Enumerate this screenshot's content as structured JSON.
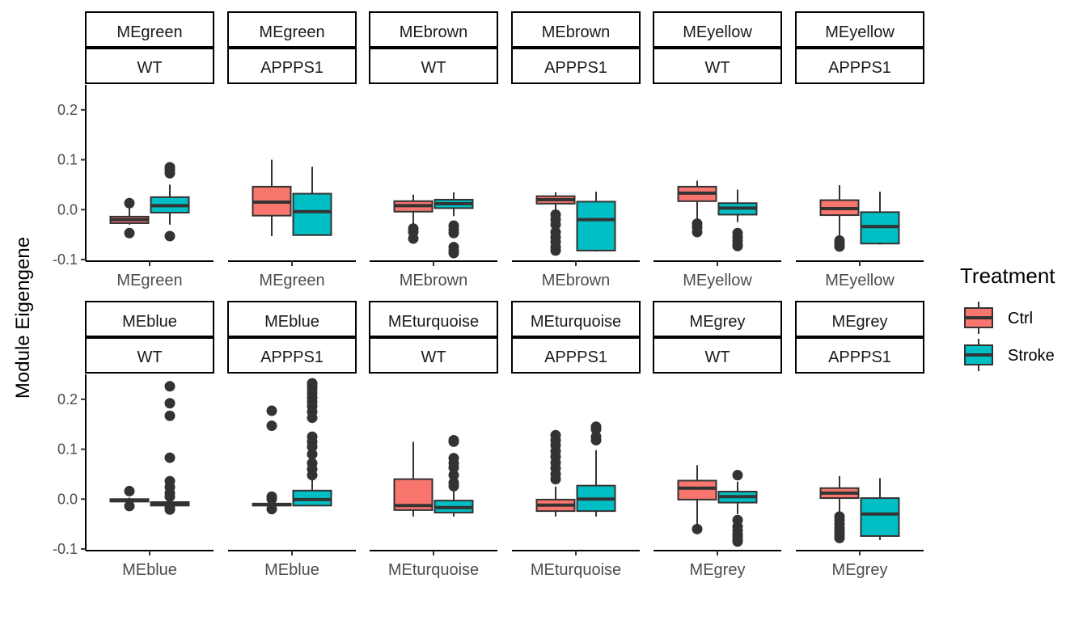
{
  "chart_data": {
    "type": "boxplot",
    "ylabel": "Module Eigengene",
    "ylim": [
      -0.1,
      0.25
    ],
    "yticks": [
      -0.1,
      0.0,
      0.1,
      0.2
    ],
    "ytick_labels": [
      "-0.1",
      "0.0",
      "0.1",
      "0.2"
    ],
    "grid": false,
    "legend": {
      "title": "Treatment",
      "position": "right",
      "entries": [
        {
          "label": "Ctrl",
          "color": "#F8766D"
        },
        {
          "label": "Stroke",
          "color": "#00BFC4"
        }
      ]
    },
    "panels": [
      {
        "module": "MEgreen",
        "genotype": "WT",
        "category": "MEgreen",
        "ctrl": {
          "q1": -0.027,
          "median": -0.02,
          "q3": -0.014,
          "lo": -0.03,
          "hi": 0.01,
          "outliers": [
            0.013,
            -0.047
          ]
        },
        "stroke": {
          "q1": -0.006,
          "median": 0.008,
          "q3": 0.025,
          "lo": -0.03,
          "hi": 0.05,
          "outliers": [
            0.085,
            0.08,
            0.073,
            -0.053
          ]
        }
      },
      {
        "module": "MEgreen",
        "genotype": "APPPS1",
        "category": "MEgreen",
        "ctrl": {
          "q1": -0.012,
          "median": 0.015,
          "q3": 0.046,
          "lo": -0.053,
          "hi": 0.1,
          "outliers": []
        },
        "stroke": {
          "q1": -0.051,
          "median": -0.004,
          "q3": 0.032,
          "lo": -0.051,
          "hi": 0.086,
          "outliers": []
        }
      },
      {
        "module": "MEbrown",
        "genotype": "WT",
        "category": "MEbrown",
        "ctrl": {
          "q1": -0.004,
          "median": 0.008,
          "q3": 0.017,
          "lo": -0.03,
          "hi": 0.03,
          "outliers": [
            -0.038,
            -0.045,
            -0.058
          ]
        },
        "stroke": {
          "q1": 0.003,
          "median": 0.012,
          "q3": 0.02,
          "lo": -0.013,
          "hi": 0.035,
          "outliers": [
            -0.032,
            -0.04,
            -0.047,
            -0.075,
            -0.082,
            -0.087
          ]
        }
      },
      {
        "module": "MEbrown",
        "genotype": "APPPS1",
        "category": "MEbrown",
        "ctrl": {
          "q1": 0.012,
          "median": 0.02,
          "q3": 0.027,
          "lo": 0.0,
          "hi": 0.035,
          "outliers": [
            -0.01,
            -0.02,
            -0.03,
            -0.045,
            -0.055,
            -0.065,
            -0.075,
            -0.082
          ]
        },
        "stroke": {
          "q1": -0.082,
          "median": -0.02,
          "q3": 0.016,
          "lo": -0.084,
          "hi": 0.036,
          "outliers": []
        }
      },
      {
        "module": "MEyellow",
        "genotype": "WT",
        "category": "MEyellow",
        "ctrl": {
          "q1": 0.017,
          "median": 0.033,
          "q3": 0.046,
          "lo": -0.02,
          "hi": 0.058,
          "outliers": [
            -0.028,
            -0.035,
            -0.045
          ]
        },
        "stroke": {
          "q1": -0.01,
          "median": 0.003,
          "q3": 0.013,
          "lo": -0.025,
          "hi": 0.04,
          "outliers": [
            -0.047,
            -0.055,
            -0.062,
            -0.07,
            -0.073
          ]
        }
      },
      {
        "module": "MEyellow",
        "genotype": "APPPS1",
        "category": "MEyellow",
        "ctrl": {
          "q1": -0.011,
          "median": 0.002,
          "q3": 0.019,
          "lo": -0.055,
          "hi": 0.049,
          "outliers": [
            -0.062,
            -0.068,
            -0.074
          ]
        },
        "stroke": {
          "q1": -0.068,
          "median": -0.034,
          "q3": -0.005,
          "lo": -0.07,
          "hi": 0.036,
          "outliers": []
        }
      },
      {
        "module": "MEblue",
        "genotype": "WT",
        "category": "MEblue",
        "ctrl": {
          "q1": -0.005,
          "median": -0.002,
          "q3": 0.0,
          "lo": -0.007,
          "hi": 0.003,
          "outliers": [
            0.016,
            -0.014
          ]
        },
        "stroke": {
          "q1": -0.013,
          "median": -0.009,
          "q3": -0.006,
          "lo": -0.017,
          "hi": -0.002,
          "outliers": [
            0.226,
            0.192,
            0.167,
            0.083,
            0.036,
            0.024,
            0.012,
            0.005,
            -0.018,
            -0.021
          ]
        }
      },
      {
        "module": "MEblue",
        "genotype": "APPPS1",
        "category": "MEblue",
        "ctrl": {
          "q1": -0.013,
          "median": -0.011,
          "q3": -0.009,
          "lo": -0.015,
          "hi": -0.005,
          "outliers": [
            0.177,
            0.147,
            0.005,
            0.0,
            -0.02
          ]
        },
        "stroke": {
          "q1": -0.013,
          "median": -0.001,
          "q3": 0.017,
          "lo": -0.013,
          "hi": 0.06,
          "outliers": [
            0.232,
            0.226,
            0.22,
            0.212,
            0.203,
            0.195,
            0.186,
            0.175,
            0.163,
            0.125,
            0.115,
            0.105,
            0.09,
            0.072,
            0.06,
            0.048
          ]
        }
      },
      {
        "module": "MEturquoise",
        "genotype": "WT",
        "category": "MEturquoise",
        "ctrl": {
          "q1": -0.022,
          "median": -0.013,
          "q3": 0.04,
          "lo": -0.035,
          "hi": 0.115,
          "outliers": []
        },
        "stroke": {
          "q1": -0.027,
          "median": -0.017,
          "q3": -0.003,
          "lo": -0.035,
          "hi": 0.018,
          "outliers": [
            0.118,
            0.115,
            0.082,
            0.072,
            0.063,
            0.048,
            0.033,
            0.026
          ]
        }
      },
      {
        "module": "MEturquoise",
        "genotype": "APPPS1",
        "category": "MEturquoise",
        "ctrl": {
          "q1": -0.024,
          "median": -0.012,
          "q3": -0.001,
          "lo": -0.035,
          "hi": 0.025,
          "outliers": [
            0.128,
            0.118,
            0.108,
            0.096,
            0.085,
            0.073,
            0.062,
            0.05,
            0.04
          ]
        },
        "stroke": {
          "q1": -0.024,
          "median": 0.0,
          "q3": 0.027,
          "lo": -0.035,
          "hi": 0.098,
          "outliers": [
            0.145,
            0.14,
            0.125,
            0.118
          ]
        }
      },
      {
        "module": "MEgrey",
        "genotype": "WT",
        "category": "MEgrey",
        "ctrl": {
          "q1": -0.001,
          "median": 0.022,
          "q3": 0.037,
          "lo": -0.055,
          "hi": 0.068,
          "outliers": [
            -0.06
          ]
        },
        "stroke": {
          "q1": -0.007,
          "median": 0.005,
          "q3": 0.015,
          "lo": -0.03,
          "hi": 0.035,
          "outliers": [
            0.048,
            -0.042,
            -0.055,
            -0.063,
            -0.07,
            -0.076,
            -0.082,
            -0.085
          ]
        }
      },
      {
        "module": "MEgrey",
        "genotype": "APPPS1",
        "category": "MEgrey",
        "ctrl": {
          "q1": 0.002,
          "median": 0.012,
          "q3": 0.022,
          "lo": -0.025,
          "hi": 0.046,
          "outliers": [
            -0.035,
            -0.042,
            -0.05,
            -0.058,
            -0.065,
            -0.072,
            -0.078
          ]
        },
        "stroke": {
          "q1": -0.074,
          "median": -0.03,
          "q3": 0.002,
          "lo": -0.082,
          "hi": 0.042,
          "outliers": []
        }
      }
    ]
  }
}
